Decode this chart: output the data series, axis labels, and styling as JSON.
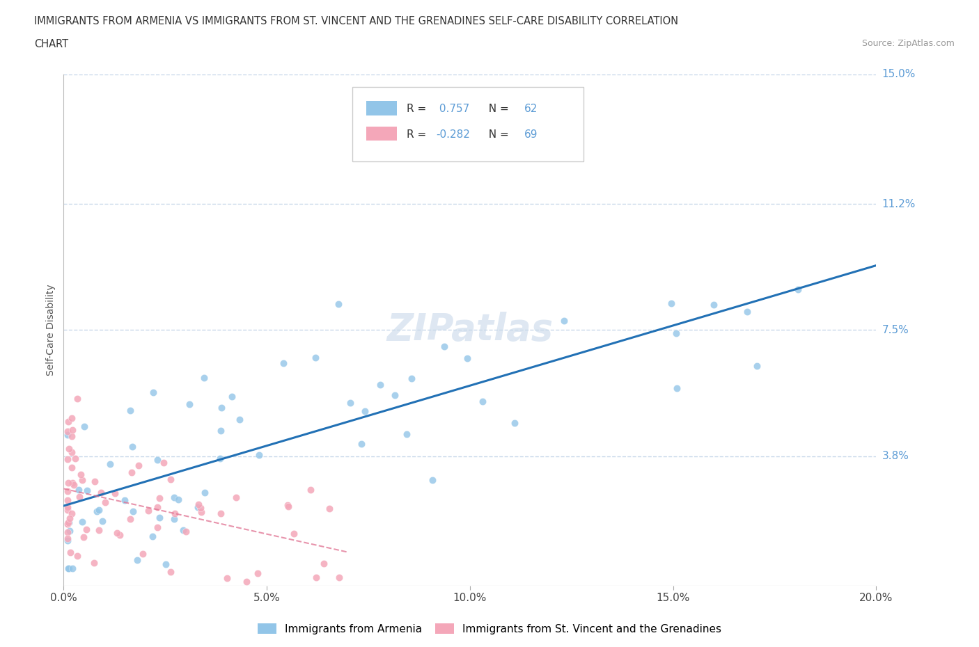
{
  "title_line1": "IMMIGRANTS FROM ARMENIA VS IMMIGRANTS FROM ST. VINCENT AND THE GRENADINES SELF-CARE DISABILITY CORRELATION",
  "title_line2": "CHART",
  "source": "Source: ZipAtlas.com",
  "ylabel": "Self-Care Disability",
  "xmin": 0.0,
  "xmax": 0.2,
  "ymin": 0.0,
  "ymax": 0.15,
  "xticks": [
    0.0,
    0.05,
    0.1,
    0.15,
    0.2
  ],
  "xtick_labels": [
    "0.0%",
    "5.0%",
    "10.0%",
    "15.0%",
    "20.0%"
  ],
  "armenia_R": 0.757,
  "armenia_N": 62,
  "stv_R": -0.282,
  "stv_N": 69,
  "armenia_color": "#92C5E8",
  "stv_color": "#F4A7B9",
  "armenia_line_color": "#2271B5",
  "stv_line_color": "#E07090",
  "legend_label_armenia": "Immigrants from Armenia",
  "legend_label_stv": "Immigrants from St. Vincent and the Grenadines",
  "watermark": "ZIPatlas",
  "grid_color": "#C8D8EA",
  "background_color": "#FFFFFF",
  "r_n_color": "#5B9BD5",
  "ytick_color": "#5B9BD5",
  "arm_scatter_seed": 7,
  "stv_scatter_seed": 13
}
